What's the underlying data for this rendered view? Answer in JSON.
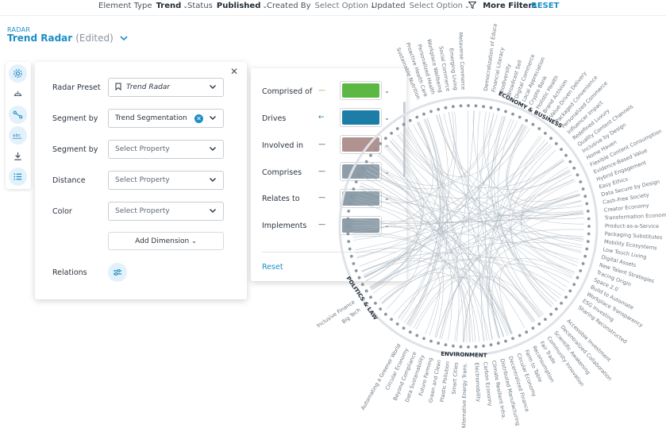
{
  "filters": {
    "element_type": {
      "label": "Element Type",
      "value": "Trend"
    },
    "status": {
      "label": "Status",
      "value": "Published"
    },
    "created_by": {
      "label": "Created By",
      "value": "Select Option"
    },
    "updated": {
      "label": "Updated",
      "value": "Select Option"
    },
    "more_filters": "More Filters",
    "reset": "RESET"
  },
  "header": {
    "crumb": "RADAR",
    "title": "Trend Radar",
    "edited": "(Edited)"
  },
  "rail": [
    "settings-icon",
    "layers-icon",
    "share-icon",
    "text-icon",
    "download-icon",
    "list-icon"
  ],
  "settings": {
    "radar_preset": {
      "label": "Radar Preset",
      "value": "Trend Radar"
    },
    "segment_by_1": {
      "label": "Segment by",
      "value": "Trend Segmentation"
    },
    "segment_by_2": {
      "label": "Segment by",
      "placeholder": "Select Property"
    },
    "distance": {
      "label": "Distance",
      "placeholder": "Select Property"
    },
    "color": {
      "label": "Color",
      "placeholder": "Select Property"
    },
    "add_dimension": "Add Dimension",
    "relations": {
      "label": "Relations"
    }
  },
  "relations": {
    "items": [
      {
        "label": "Comprised of",
        "line": "—",
        "color": "#5db843"
      },
      {
        "label": "Drives",
        "line": "←",
        "color": "#1c7ea6"
      },
      {
        "label": "Involved in",
        "line": "—",
        "color": "#b09290"
      },
      {
        "label": "Comprises",
        "line": "—",
        "color": "#8e9ea9"
      },
      {
        "label": "Relates to",
        "line": "—",
        "color": "#8e9ea9"
      },
      {
        "label": "Implements",
        "line": "—",
        "color": "#8e9ea9"
      }
    ],
    "reset": "Reset"
  },
  "radar": {
    "segments": [
      {
        "name": "ECONOMY & BUSINESS",
        "color": "#1f2a35"
      },
      {
        "name": "ENVIRONMENT",
        "color": "#1f2a35"
      },
      {
        "name": "POLITICS & LAW",
        "color": "#1f2a35"
      }
    ],
    "right_labels": [
      "Democratization of Education",
      "Financial Literacy",
      "Biodiversity",
      "Broadcast Sell",
      "Digital Commerce",
      "Local Appreciation",
      "Crypto Bank",
      "Holistic Health",
      "Brand Activism",
      "Value-Driven Delivery",
      "Packaged Convenience",
      "Personalized Commerce",
      "Influencer Impact",
      "Redefined Luxury",
      "Quality Content Channels",
      "Inclusive by Design",
      "Home Haven",
      "Flexible Content Consumption",
      "Evidence-Based Value",
      "Hybrid Engagement",
      "Easy Ethics",
      "Data Secure by Design",
      "Cash-Free Society",
      "Creator Economy",
      "Transformation Economy",
      "Product-as-a-Service",
      "Packaging Substitutes",
      "Mobility Ecosystems",
      "Low Touch Living",
      "Digital Assets",
      "New Talent Strategies",
      "Tracing Origin",
      "Space 2.0",
      "Build to Automate",
      "Workplace Transparency",
      "ESG Investing",
      "Sharing Reconstructed"
    ],
    "bottom_labels": [
      "Accessible Investment",
      "Decentralized Collaboration",
      "Scientific Awakening",
      "Community Innovation",
      "Fair Trade",
      "Reconsumption",
      "Farm to Table",
      "Circular Economy",
      "Decentralized Finance",
      "Distributed Manufacturing",
      "Climate Resilient Infra.",
      "Carbon Economy",
      "Electromobility",
      "Alternative Energy Trans.",
      "Smart Cities",
      "Plastic Pollution",
      "Green and Clean",
      "Future Farming",
      "Data Sustainability",
      "Beyond Compliance",
      "Circular Economy",
      "Automating a Greener World"
    ],
    "top_labels": [
      "Sustainable Nutrition",
      "Proactive Health Care",
      "Personalized Health",
      "Workplace Wellbeing",
      "Social Commerce",
      "Emerging Living",
      "Metaverse Commerce"
    ],
    "left_labels": [
      "Big Tech",
      "Inclusive Finance"
    ]
  }
}
